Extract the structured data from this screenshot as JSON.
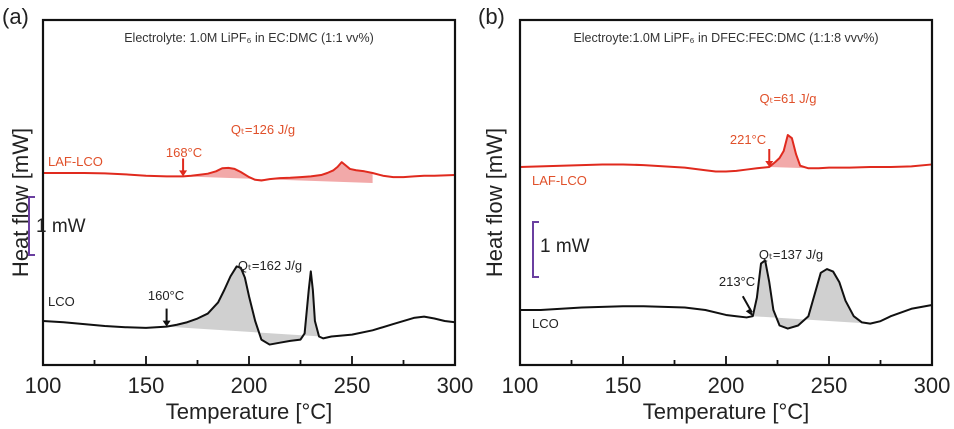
{
  "chart_data": [
    {
      "type": "line",
      "panel_label": "(a)",
      "title": "Electrolyte: 1.0M LiPF₆ in EC:DMC (1:1 vv%)",
      "xlabel": "Temperature [°C]",
      "ylabel": "Heat flow [mW]",
      "xlim": [
        100,
        300
      ],
      "xticks": [
        100,
        150,
        200,
        250,
        300
      ],
      "minor_xticks": [
        125,
        175,
        225,
        275
      ],
      "scale_bar_label": "1 mW",
      "series": [
        {
          "name": "LAF-LCO",
          "color": "#e02a1e",
          "fill_color": "#f09a9a",
          "onset_label": "168°C",
          "onset_x": 168,
          "heat_label": "Qₜ=126 J/g",
          "x": [
            100,
            110,
            120,
            130,
            140,
            150,
            160,
            165,
            168,
            172,
            176,
            180,
            184,
            187,
            190,
            193,
            196,
            200,
            203,
            206,
            210,
            215,
            220,
            225,
            230,
            235,
            238,
            241,
            243,
            245,
            247,
            249,
            252,
            256,
            260,
            265,
            270,
            275,
            280,
            285,
            290,
            295,
            300
          ],
          "y": [
            0.0,
            0.0,
            0.0,
            -0.01,
            -0.04,
            -0.08,
            -0.1,
            -0.1,
            -0.1,
            -0.08,
            -0.05,
            -0.02,
            0.05,
            0.14,
            0.15,
            0.12,
            0.03,
            -0.12,
            -0.2,
            -0.22,
            -0.18,
            -0.15,
            -0.14,
            -0.12,
            -0.1,
            -0.06,
            0.0,
            0.08,
            0.18,
            0.32,
            0.22,
            0.12,
            0.08,
            0.05,
            0.0,
            -0.08,
            -0.12,
            -0.12,
            -0.1,
            -0.08,
            -0.08,
            -0.07,
            -0.06
          ]
        },
        {
          "name": "LCO",
          "color": "#111111",
          "fill_color": "#c8c8c8",
          "onset_label": "160°C",
          "onset_x": 160,
          "heat_label": "Qₜ=162 J/g",
          "x": [
            100,
            110,
            120,
            130,
            140,
            150,
            160,
            165,
            170,
            175,
            180,
            185,
            188,
            191,
            194,
            196,
            198,
            200,
            203,
            206,
            210,
            215,
            220,
            225,
            227,
            229,
            230,
            231,
            232,
            234,
            236,
            240,
            250,
            260,
            270,
            280,
            285,
            290,
            295,
            300
          ],
          "y": [
            0.0,
            -0.02,
            -0.05,
            -0.08,
            -0.1,
            -0.11,
            -0.09,
            -0.06,
            -0.02,
            0.04,
            0.12,
            0.3,
            0.5,
            0.72,
            0.88,
            0.86,
            0.7,
            0.4,
            0.0,
            -0.3,
            -0.38,
            -0.35,
            -0.32,
            -0.3,
            -0.2,
            0.5,
            0.8,
            0.5,
            0.0,
            -0.25,
            -0.28,
            -0.25,
            -0.22,
            -0.15,
            -0.05,
            0.05,
            0.07,
            0.04,
            0.0,
            -0.02
          ]
        }
      ]
    },
    {
      "type": "line",
      "panel_label": "(b)",
      "title": "Electroyte:1.0M LiPF₆ in DFEC:FEC:DMC (1:1:8 vvv%)",
      "xlabel": "Temperature [°C]",
      "ylabel": "Heat flow [mW]",
      "xlim": [
        100,
        300
      ],
      "xticks": [
        100,
        150,
        200,
        250,
        300
      ],
      "minor_xticks": [
        125,
        175,
        225,
        275
      ],
      "scale_bar_label": "1 mW",
      "series": [
        {
          "name": "LAF-LCO",
          "color": "#e02a1e",
          "fill_color": "#f09a9a",
          "onset_label": "221°C",
          "onset_x": 221,
          "heat_label": "Qₜ=61 J/g",
          "x": [
            100,
            110,
            120,
            130,
            140,
            150,
            160,
            170,
            180,
            190,
            195,
            200,
            205,
            210,
            215,
            221,
            224,
            226,
            228,
            230,
            232,
            234,
            236,
            240,
            245,
            250,
            260,
            270,
            280,
            290,
            300
          ],
          "y": [
            0.0,
            0.01,
            0.02,
            0.03,
            0.04,
            0.04,
            0.03,
            0.01,
            -0.01,
            -0.05,
            -0.07,
            -0.07,
            -0.06,
            -0.04,
            -0.02,
            0.0,
            0.08,
            0.14,
            0.25,
            0.5,
            0.45,
            0.2,
            0.02,
            -0.02,
            -0.02,
            -0.01,
            -0.01,
            0.0,
            0.0,
            0.01,
            0.04
          ]
        },
        {
          "name": "LCO",
          "color": "#111111",
          "fill_color": "#c8c8c8",
          "onset_label": "213°C",
          "onset_x": 213,
          "heat_label": "Qₜ=137 J/g",
          "x": [
            100,
            110,
            120,
            130,
            140,
            150,
            160,
            170,
            180,
            190,
            200,
            205,
            210,
            213,
            215,
            217,
            219,
            221,
            223,
            226,
            230,
            235,
            240,
            243,
            246,
            249,
            252,
            255,
            258,
            262,
            266,
            270,
            275,
            280,
            290,
            300
          ],
          "y": [
            0.0,
            0.0,
            0.02,
            0.04,
            0.05,
            0.06,
            0.06,
            0.05,
            0.04,
            0.0,
            -0.08,
            -0.1,
            -0.12,
            -0.1,
            0.2,
            0.75,
            0.8,
            0.45,
            0.0,
            -0.25,
            -0.3,
            -0.25,
            -0.1,
            0.25,
            0.6,
            0.66,
            0.62,
            0.45,
            0.15,
            -0.1,
            -0.2,
            -0.22,
            -0.18,
            -0.1,
            0.02,
            0.08
          ]
        }
      ]
    }
  ]
}
